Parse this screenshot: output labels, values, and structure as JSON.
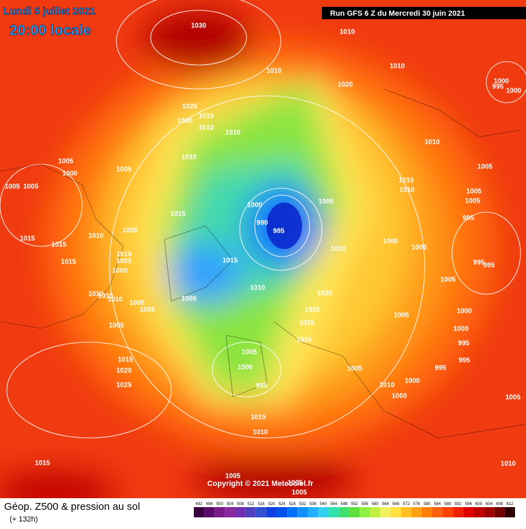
{
  "header": {
    "date": "Lundi 5 juillet 2021",
    "time": "20:00 locale",
    "run": "Run GFS 6 Z du Mercredi 30 juin 2021"
  },
  "copyright": "Copyright © 2021 Meteociel.fr",
  "footer": {
    "title": "Géop. Z500 & pression au sol",
    "lead": "(+ 132h)"
  },
  "scale": {
    "values": [
      492,
      496,
      500,
      504,
      508,
      512,
      516,
      520,
      524,
      528,
      532,
      536,
      540,
      544,
      548,
      552,
      556,
      560,
      564,
      568,
      572,
      576,
      580,
      584,
      588,
      592,
      596,
      600,
      604,
      608,
      612
    ],
    "colors": [
      "#3a0040",
      "#5a0a6a",
      "#7a1a8a",
      "#8a2aa0",
      "#7030b0",
      "#5040c0",
      "#3050d0",
      "#1040e0",
      "#0050f0",
      "#0070ff",
      "#1090ff",
      "#20b0ff",
      "#30d0f0",
      "#30e0b0",
      "#40e070",
      "#60e040",
      "#90f040",
      "#c0f040",
      "#f0f060",
      "#ffe040",
      "#ffc020",
      "#ffa010",
      "#ff8000",
      "#ff6010",
      "#ff4000",
      "#f02000",
      "#e00000",
      "#c00000",
      "#a00000",
      "#700000",
      "#300000"
    ]
  },
  "isobar_labels": [
    1030,
    1010,
    1010,
    1010,
    1020,
    1000,
    995,
    1000,
    1025,
    1015,
    1020,
    1010,
    1010,
    1010,
    1010,
    1005,
    1005,
    1000,
    1005,
    1010,
    1005,
    1005,
    1010,
    1005,
    1005,
    1005,
    1000,
    1015,
    995,
    990,
    985,
    1020,
    1010,
    1015,
    1000,
    1005,
    1015,
    1010,
    1005,
    1010,
    1015,
    1015,
    995,
    995,
    1000,
    1005,
    1010,
    1010,
    1010,
    1010,
    1020,
    1005,
    1005,
    1005,
    1015,
    1015,
    1005,
    1000,
    1005,
    1000,
    1015,
    995,
    1005,
    1015,
    995,
    1000,
    1020,
    1005,
    995,
    1000,
    1025,
    995,
    1010,
    1000,
    1005,
    1015,
    1010,
    1015,
    1010,
    1005,
    1005,
    1005
  ]
}
